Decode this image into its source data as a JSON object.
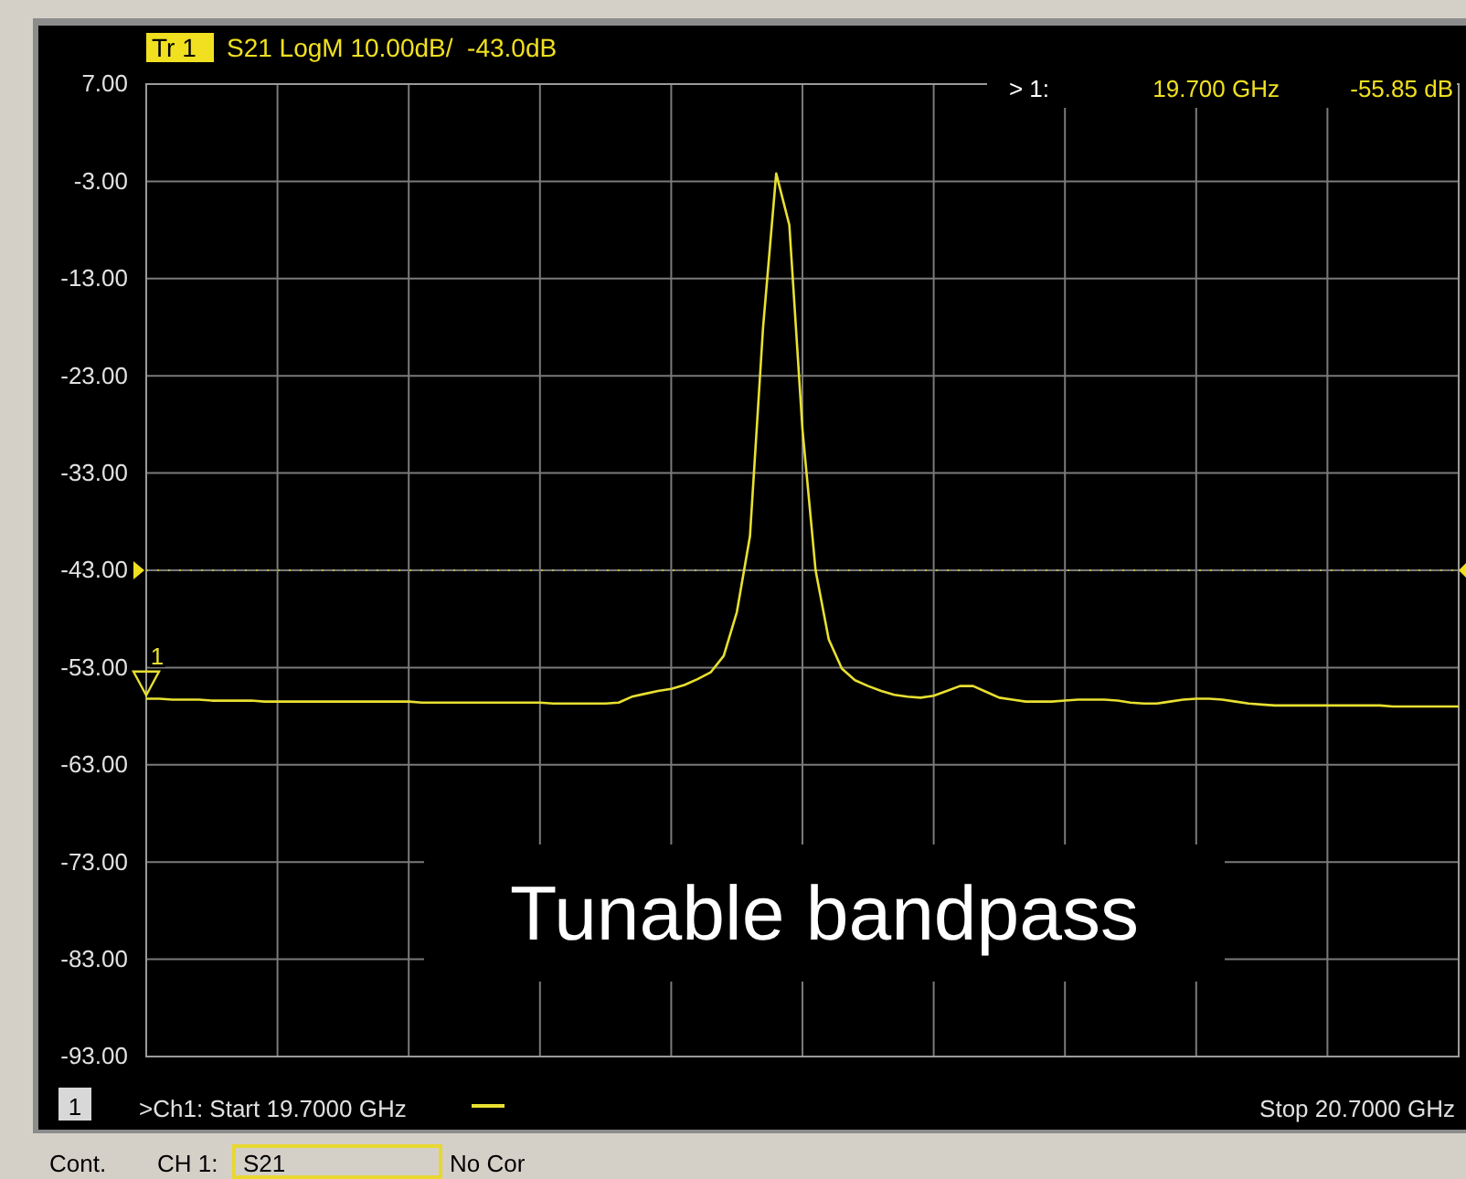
{
  "chart_data": {
    "type": "line",
    "title": "Tr 1",
    "subtitle": "S21 LogM 10.00dB/  -43.0dB",
    "categories": [
      null,
      null,
      null,
      null,
      null,
      null,
      null,
      null,
      null,
      null,
      null,
      null,
      null,
      null,
      null,
      null,
      null,
      null,
      null,
      null,
      null,
      null,
      null,
      null,
      null,
      null,
      null,
      null,
      null,
      null,
      null,
      null,
      null,
      null,
      null,
      null,
      null,
      null,
      null,
      null,
      null,
      null,
      null,
      null,
      null,
      null,
      null,
      null,
      null,
      null,
      null,
      null,
      null,
      null,
      null,
      null,
      null,
      null,
      null,
      null,
      null,
      null,
      null,
      null,
      null,
      null,
      null,
      null,
      null,
      null,
      null,
      null,
      null,
      null,
      null,
      null,
      null,
      null,
      null,
      null,
      null,
      null,
      null,
      null,
      null,
      null,
      null,
      null,
      null,
      null,
      null,
      null,
      null,
      null,
      null,
      null,
      null,
      null,
      null,
      null,
      null
    ],
    "ylim": [
      -93,
      7
    ],
    "yticks": [
      {
        "value": 7,
        "label": "7.00"
      },
      {
        "value": -3,
        "label": "-3.00"
      },
      {
        "value": -13,
        "label": "-13.00"
      },
      {
        "value": -23,
        "label": "-23.00"
      },
      {
        "value": -33,
        "label": "-33.00"
      },
      {
        "value": -43,
        "label": "-43.00"
      },
      {
        "value": -53,
        "label": "-53.00"
      },
      {
        "value": -63,
        "label": "-63.00"
      },
      {
        "value": -73,
        "label": "-73.00"
      },
      {
        "value": -83,
        "label": "-83.00"
      },
      {
        "value": -93,
        "label": "-93.00"
      }
    ],
    "grid": true,
    "marker": "none",
    "line_style": "solid",
    "ref_lines": [
      {
        "axis": "y",
        "value": -43,
        "color": "#f0e020"
      }
    ],
    "series": [
      {
        "color": "#e8e030",
        "values": [
          -56.2,
          -56.2,
          -56.3,
          -56.3,
          -56.3,
          -56.4,
          -56.4,
          -56.4,
          -56.4,
          -56.5,
          -56.5,
          -56.5,
          -56.5,
          -56.5,
          -56.5,
          -56.5,
          -56.5,
          -56.5,
          -56.5,
          -56.5,
          -56.5,
          -56.6,
          -56.6,
          -56.6,
          -56.6,
          -56.6,
          -56.6,
          -56.6,
          -56.6,
          -56.6,
          -56.6,
          -56.7,
          -56.7,
          -56.7,
          -56.7,
          -56.7,
          -56.6,
          -56.0,
          -55.7,
          -55.4,
          -55.2,
          -54.8,
          -54.2,
          -53.5,
          -51.8,
          -47.3,
          -39.5,
          -18.0,
          -2.2,
          -7.5,
          -28.5,
          -43.0,
          -50.1,
          -53.1,
          -54.3,
          -54.9,
          -55.4,
          -55.8,
          -56.0,
          -56.1,
          -55.9,
          -55.4,
          -54.9,
          -54.9,
          -55.5,
          -56.1,
          -56.3,
          -56.5,
          -56.5,
          -56.5,
          -56.4,
          -56.3,
          -56.3,
          -56.3,
          -56.4,
          -56.6,
          -56.7,
          -56.7,
          -56.5,
          -56.3,
          -56.2,
          -56.2,
          -56.3,
          -56.5,
          -56.7,
          -56.8,
          -56.9,
          -56.9,
          -56.9,
          -56.9,
          -56.9,
          -56.9,
          -56.9,
          -56.9,
          -56.9,
          -57.0,
          -57.0,
          -57.0,
          -57.0,
          -57.0,
          -57.0
        ]
      }
    ],
    "annotations": [
      {
        "text": "1",
        "y": -55.85
      },
      "> 1:",
      "19.700 GHz",
      "-55.85 dB",
      "Tunable bandpass",
      "1",
      ">Ch1: Start 19.7000 GHz",
      "Stop 20.7000 GHz",
      "Cont.",
      "CH 1:",
      "S21",
      "No Cor"
    ]
  }
}
